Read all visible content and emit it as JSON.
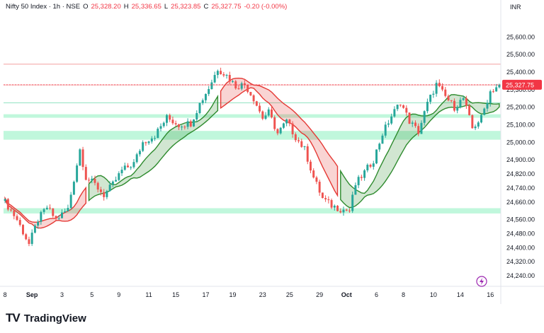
{
  "header": {
    "symbol": "Nifty 50 Index · 1h · NSE",
    "o_label": "O",
    "o_value": "25,328.20",
    "h_label": "H",
    "h_value": "25,336.65",
    "l_label": "L",
    "l_value": "25,323.85",
    "c_label": "C",
    "c_value": "25,327.75",
    "change": "-0.20 (-0.00%)"
  },
  "currency": "INR",
  "brand": {
    "logo": "TV",
    "name": "TradingView"
  },
  "colors": {
    "up": "#26a69a",
    "down": "#ef5350",
    "zone": "#b9f6d8",
    "cloud_up": "#2e8b2e",
    "cloud_down": "#e53935",
    "price_tag": "#f23645",
    "axis_text": "#131722",
    "bolt": "#9c27b0"
  },
  "chart_data": {
    "type": "candlestick",
    "ylim": [
      24180,
      25730
    ],
    "x_ticks": [
      {
        "label": "8",
        "pos": 0
      },
      {
        "label": "Sep",
        "pos": 9,
        "bold": true
      },
      {
        "label": "3",
        "pos": 19
      },
      {
        "label": "5",
        "pos": 29
      },
      {
        "label": "9",
        "pos": 38
      },
      {
        "label": "11",
        "pos": 48
      },
      {
        "label": "15",
        "pos": 57
      },
      {
        "label": "17",
        "pos": 67
      },
      {
        "label": "19",
        "pos": 76
      },
      {
        "label": "23",
        "pos": 86
      },
      {
        "label": "25",
        "pos": 95
      },
      {
        "label": "29",
        "pos": 105
      },
      {
        "label": "Oct",
        "pos": 114,
        "bold": true
      },
      {
        "label": "6",
        "pos": 124
      },
      {
        "label": "8",
        "pos": 133
      },
      {
        "label": "10",
        "pos": 143
      },
      {
        "label": "14",
        "pos": 152
      },
      {
        "label": "16",
        "pos": 162
      }
    ],
    "y_ticks": [
      "25,600.00",
      "25,500.00",
      "25,400.00",
      "25,300.00",
      "25,200.00",
      "25,100.00",
      "25,000.00",
      "24,900.00",
      "24,820.00",
      "24,740.00",
      "24,660.00",
      "24,560.00",
      "24,480.00",
      "24,400.00",
      "24,320.00",
      "24,240.00"
    ],
    "y_tick_values": [
      25600,
      25500,
      25400,
      25300,
      25200,
      25100,
      25000,
      24900,
      24820,
      24740,
      24660,
      24560,
      24480,
      24400,
      24320,
      24240
    ],
    "last_price": 25327.75,
    "last_price_label": "25,327.75",
    "resistance_lines": [
      25445,
      25327,
      25225
    ],
    "zones": [
      {
        "from": 25140,
        "to": 25160
      },
      {
        "from": 25015,
        "to": 25065
      },
      {
        "from": 24595,
        "to": 24625
      }
    ],
    "key_points": [
      [
        0,
        24660
      ],
      [
        4,
        24560
      ],
      [
        8,
        24420
      ],
      [
        11,
        24560
      ],
      [
        14,
        24630
      ],
      [
        17,
        24560
      ],
      [
        21,
        24620
      ],
      [
        25,
        24960
      ],
      [
        27,
        24800
      ],
      [
        30,
        24760
      ],
      [
        33,
        24700
      ],
      [
        36,
        24760
      ],
      [
        39,
        24840
      ],
      [
        43,
        24880
      ],
      [
        46,
        25000
      ],
      [
        50,
        25040
      ],
      [
        54,
        25140
      ],
      [
        58,
        25100
      ],
      [
        62,
        25110
      ],
      [
        65,
        25220
      ],
      [
        68,
        25310
      ],
      [
        71,
        25420
      ],
      [
        74,
        25380
      ],
      [
        77,
        25320
      ],
      [
        80,
        25330
      ],
      [
        83,
        25250
      ],
      [
        86,
        25140
      ],
      [
        88,
        25170
      ],
      [
        91,
        25050
      ],
      [
        94,
        25120
      ],
      [
        97,
        25030
      ],
      [
        100,
        24960
      ],
      [
        103,
        24800
      ],
      [
        106,
        24680
      ],
      [
        109,
        24640
      ],
      [
        112,
        24620
      ],
      [
        115,
        24610
      ],
      [
        117,
        24760
      ],
      [
        120,
        24830
      ],
      [
        123,
        24900
      ],
      [
        126,
        25050
      ],
      [
        129,
        25150
      ],
      [
        132,
        25230
      ],
      [
        135,
        25120
      ],
      [
        138,
        25060
      ],
      [
        141,
        25220
      ],
      [
        144,
        25330
      ],
      [
        147,
        25260
      ],
      [
        150,
        25200
      ],
      [
        153,
        25250
      ],
      [
        156,
        25080
      ],
      [
        159,
        25140
      ],
      [
        162,
        25290
      ],
      [
        165,
        25328
      ]
    ],
    "candle_count": 166,
    "cloud_spans": [
      {
        "from": 0,
        "to": 28,
        "up": false
      },
      {
        "from": 28,
        "to": 72,
        "up": true
      },
      {
        "from": 72,
        "to": 112,
        "up": false
      },
      {
        "from": 112,
        "to": 166,
        "up": true
      }
    ]
  }
}
